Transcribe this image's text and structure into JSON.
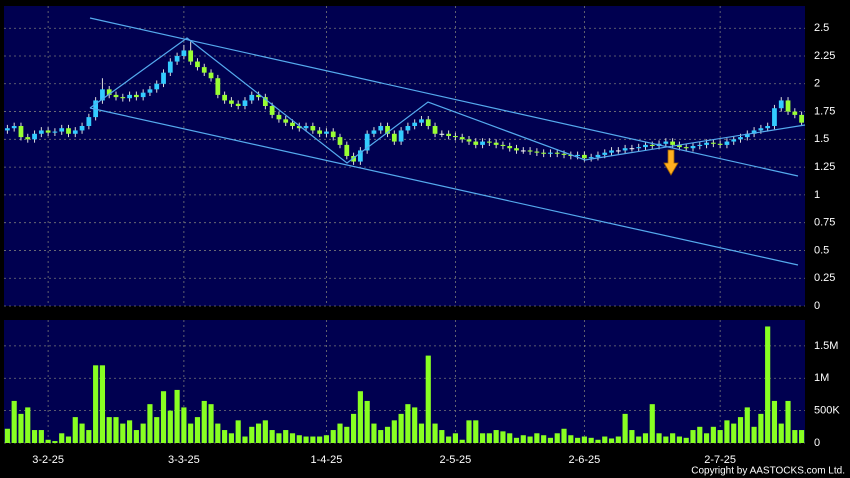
{
  "chart_data": [
    {
      "type": "candlestick",
      "categories": [
        null,
        null,
        null,
        null,
        null,
        null,
        "3-2-25",
        null,
        null,
        null,
        null,
        null,
        null,
        null,
        null,
        null,
        null,
        null,
        null,
        null,
        null,
        null,
        null,
        null,
        null,
        null,
        "3-3-25",
        null,
        null,
        null,
        null,
        null,
        null,
        null,
        null,
        null,
        null,
        null,
        null,
        null,
        null,
        null,
        null,
        null,
        null,
        null,
        null,
        "1-4-25",
        null,
        null,
        null,
        null,
        null,
        null,
        null,
        null,
        null,
        null,
        null,
        null,
        null,
        null,
        null,
        null,
        null,
        null,
        "2-5-25",
        null,
        null,
        null,
        null,
        null,
        null,
        null,
        null,
        null,
        null,
        null,
        null,
        null,
        null,
        null,
        null,
        null,
        null,
        "2-6-25",
        null,
        null,
        null,
        null,
        null,
        null,
        null,
        null,
        null,
        null,
        null,
        null,
        null,
        null,
        null,
        null,
        null,
        null,
        null,
        "2-7-25",
        null,
        null,
        null,
        null,
        null,
        null,
        null,
        null,
        null,
        null,
        null,
        null
      ],
      "open": [
        1.58,
        1.6,
        1.62,
        1.52,
        1.5,
        1.55,
        1.58,
        1.56,
        1.57,
        1.6,
        1.55,
        1.58,
        1.62,
        1.7,
        1.85,
        1.95,
        1.9,
        1.88,
        1.87,
        1.9,
        1.88,
        1.92,
        1.95,
        2.0,
        2.1,
        2.2,
        2.25,
        2.3,
        2.2,
        2.15,
        2.1,
        2.05,
        1.9,
        1.85,
        1.82,
        1.8,
        1.85,
        1.9,
        1.88,
        1.8,
        1.72,
        1.68,
        1.65,
        1.62,
        1.6,
        1.62,
        1.58,
        1.55,
        1.57,
        1.52,
        1.45,
        1.35,
        1.3,
        1.4,
        1.55,
        1.58,
        1.62,
        1.55,
        1.48,
        1.58,
        1.62,
        1.65,
        1.68,
        1.62,
        1.55,
        1.55,
        1.53,
        1.52,
        1.5,
        1.48,
        1.45,
        1.48,
        1.47,
        1.45,
        1.44,
        1.42,
        1.4,
        1.4,
        1.39,
        1.38,
        1.37,
        1.38,
        1.37,
        1.36,
        1.35,
        1.36,
        1.33,
        1.34,
        1.36,
        1.38,
        1.4,
        1.4,
        1.42,
        1.42,
        1.43,
        1.45,
        1.44,
        1.46,
        1.48,
        1.45,
        1.43,
        1.42,
        1.44,
        1.45,
        1.47,
        1.46,
        1.45,
        1.48,
        1.5,
        1.52,
        1.55,
        1.58,
        1.6,
        1.62,
        1.78,
        1.85,
        1.75,
        1.72
      ],
      "high": [
        1.63,
        1.65,
        1.65,
        1.55,
        1.58,
        1.61,
        1.61,
        1.6,
        1.63,
        1.63,
        1.61,
        1.65,
        1.73,
        1.88,
        2.05,
        1.98,
        1.93,
        1.91,
        1.93,
        1.93,
        1.95,
        1.98,
        2.03,
        2.13,
        2.23,
        2.28,
        2.35,
        2.38,
        2.23,
        2.18,
        2.13,
        2.08,
        1.93,
        1.88,
        1.85,
        1.88,
        1.93,
        1.93,
        1.91,
        1.83,
        1.75,
        1.71,
        1.68,
        1.65,
        1.65,
        1.65,
        1.61,
        1.6,
        1.6,
        1.55,
        1.48,
        1.38,
        1.43,
        1.58,
        1.61,
        1.65,
        1.65,
        1.58,
        1.61,
        1.65,
        1.68,
        1.71,
        1.71,
        1.65,
        1.58,
        1.58,
        1.56,
        1.55,
        1.53,
        1.51,
        1.51,
        1.51,
        1.5,
        1.48,
        1.47,
        1.45,
        1.43,
        1.43,
        1.42,
        1.41,
        1.41,
        1.41,
        1.4,
        1.39,
        1.39,
        1.39,
        1.37,
        1.39,
        1.41,
        1.43,
        1.43,
        1.45,
        1.45,
        1.46,
        1.48,
        1.48,
        1.49,
        1.51,
        1.51,
        1.48,
        1.46,
        1.47,
        1.48,
        1.5,
        1.5,
        1.49,
        1.51,
        1.53,
        1.55,
        1.58,
        1.61,
        1.63,
        1.65,
        1.81,
        1.88,
        1.88,
        1.78,
        1.75
      ],
      "low": [
        1.55,
        1.57,
        1.49,
        1.47,
        1.47,
        1.52,
        1.53,
        1.53,
        1.54,
        1.52,
        1.52,
        1.55,
        1.59,
        1.67,
        1.82,
        1.87,
        1.85,
        1.84,
        1.84,
        1.85,
        1.85,
        1.89,
        1.92,
        1.97,
        2.07,
        2.17,
        2.22,
        2.17,
        2.12,
        2.07,
        2.02,
        1.87,
        1.82,
        1.79,
        1.77,
        1.77,
        1.82,
        1.85,
        1.77,
        1.69,
        1.65,
        1.62,
        1.59,
        1.57,
        1.57,
        1.55,
        1.52,
        1.52,
        1.49,
        1.42,
        1.32,
        1.27,
        1.27,
        1.37,
        1.52,
        1.55,
        1.52,
        1.45,
        1.45,
        1.55,
        1.59,
        1.62,
        1.59,
        1.52,
        1.52,
        1.5,
        1.49,
        1.47,
        1.45,
        1.42,
        1.42,
        1.44,
        1.42,
        1.41,
        1.39,
        1.37,
        1.37,
        1.36,
        1.35,
        1.34,
        1.34,
        1.34,
        1.33,
        1.32,
        1.32,
        1.3,
        1.3,
        1.31,
        1.33,
        1.35,
        1.37,
        1.37,
        1.39,
        1.39,
        1.4,
        1.41,
        1.41,
        1.43,
        1.42,
        1.4,
        1.39,
        1.39,
        1.41,
        1.42,
        1.43,
        1.42,
        1.42,
        1.45,
        1.47,
        1.49,
        1.52,
        1.55,
        1.57,
        1.59,
        1.75,
        1.72,
        1.69,
        1.62
      ],
      "close": [
        1.6,
        1.62,
        1.52,
        1.5,
        1.55,
        1.58,
        1.56,
        1.57,
        1.6,
        1.55,
        1.58,
        1.62,
        1.7,
        1.85,
        1.95,
        1.9,
        1.88,
        1.87,
        1.9,
        1.88,
        1.92,
        1.95,
        2.0,
        2.1,
        2.2,
        2.25,
        2.3,
        2.2,
        2.15,
        2.1,
        2.05,
        1.9,
        1.85,
        1.82,
        1.8,
        1.85,
        1.9,
        1.88,
        1.8,
        1.72,
        1.68,
        1.65,
        1.62,
        1.6,
        1.62,
        1.58,
        1.55,
        1.57,
        1.52,
        1.45,
        1.35,
        1.3,
        1.4,
        1.55,
        1.58,
        1.62,
        1.55,
        1.48,
        1.58,
        1.62,
        1.65,
        1.68,
        1.62,
        1.55,
        1.55,
        1.53,
        1.52,
        1.5,
        1.48,
        1.45,
        1.48,
        1.47,
        1.45,
        1.44,
        1.42,
        1.4,
        1.4,
        1.39,
        1.38,
        1.37,
        1.38,
        1.37,
        1.36,
        1.35,
        1.36,
        1.33,
        1.34,
        1.36,
        1.38,
        1.4,
        1.4,
        1.42,
        1.42,
        1.43,
        1.45,
        1.44,
        1.46,
        1.48,
        1.45,
        1.43,
        1.42,
        1.44,
        1.45,
        1.47,
        1.46,
        1.45,
        1.48,
        1.5,
        1.52,
        1.55,
        1.58,
        1.6,
        1.62,
        1.78,
        1.85,
        1.75,
        1.72,
        1.65
      ],
      "up_color": "#33ccff",
      "down_color": "#99ff33",
      "ylim": [
        0,
        2.7
      ],
      "yticks": [
        0,
        0.25,
        0.5,
        0.75,
        1,
        1.25,
        1.5,
        1.75,
        2,
        2.25,
        2.5
      ],
      "grid": true
    },
    {
      "type": "bar",
      "color": "#88ff22",
      "values": [
        220000,
        650000,
        450000,
        550000,
        200000,
        200000,
        50000,
        30000,
        150000,
        100000,
        400000,
        300000,
        200000,
        1200000,
        1200000,
        400000,
        400000,
        300000,
        350000,
        200000,
        300000,
        600000,
        400000,
        800000,
        500000,
        820000,
        550000,
        300000,
        400000,
        650000,
        600000,
        300000,
        200000,
        150000,
        350000,
        100000,
        250000,
        300000,
        350000,
        200000,
        150000,
        200000,
        150000,
        120000,
        100000,
        100000,
        100000,
        120000,
        200000,
        300000,
        250000,
        450000,
        800000,
        650000,
        300000,
        200000,
        250000,
        350000,
        450000,
        600000,
        550000,
        300000,
        1350000,
        300000,
        200000,
        100000,
        150000,
        50000,
        350000,
        350000,
        150000,
        150000,
        200000,
        180000,
        150000,
        80000,
        120000,
        100000,
        150000,
        120000,
        80000,
        150000,
        220000,
        120000,
        80000,
        100000,
        80000,
        50000,
        100000,
        70000,
        100000,
        450000,
        200000,
        100000,
        150000,
        600000,
        150000,
        100000,
        150000,
        100000,
        80000,
        200000,
        250000,
        150000,
        250000,
        200000,
        350000,
        300000,
        400000,
        550000,
        250000,
        450000,
        1800000,
        650000,
        300000,
        650000,
        200000,
        200000
      ],
      "ylim": [
        0,
        1900000
      ],
      "yticks": [
        0,
        {
          "value": 500000,
          "label": "500K"
        },
        {
          "value": 1000000,
          "label": "1M"
        },
        {
          "value": 1500000,
          "label": "1.5M"
        }
      ],
      "grid": true
    }
  ],
  "copyright": "Copyright by AASTOCKS.com Ltd."
}
